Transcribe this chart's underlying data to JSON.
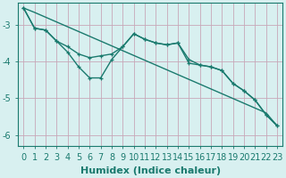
{
  "xlabel": "Humidex (Indice chaleur)",
  "background_color": "#d8f0f0",
  "grid_color": "#c8a8b8",
  "line_color": "#1a7a6e",
  "x": [
    0,
    1,
    2,
    3,
    4,
    5,
    6,
    7,
    8,
    9,
    10,
    11,
    12,
    13,
    14,
    15,
    16,
    17,
    18,
    19,
    20,
    21,
    22,
    23
  ],
  "wavy1": [
    -2.55,
    -3.1,
    -3.15,
    -3.45,
    -3.75,
    -4.15,
    -4.45,
    -4.45,
    -3.95,
    -3.6,
    -3.25,
    -3.4,
    -3.5,
    -3.55,
    -3.5,
    -4.05,
    -4.1,
    -4.15,
    -4.25,
    -4.6,
    -4.8,
    -5.05,
    -5.45,
    -5.75
  ],
  "wavy2": [
    -2.55,
    -3.1,
    -3.15,
    -3.45,
    -3.6,
    -3.8,
    -3.9,
    -3.85,
    -3.8,
    -3.6,
    -3.25,
    -3.4,
    -3.5,
    -3.55,
    -3.5,
    -3.95,
    -4.1,
    -4.15,
    -4.25,
    -4.6,
    -4.8,
    -5.05,
    -5.45,
    -5.75
  ],
  "straight_line": [
    -2.55,
    -2.67,
    -2.8,
    -2.93,
    -3.06,
    -3.19,
    -3.32,
    -3.45,
    -3.58,
    -3.71,
    -3.84,
    -3.97,
    -4.1,
    -4.23,
    -4.36,
    -4.49,
    -4.62,
    -4.75,
    -4.88,
    -5.01,
    -5.14,
    -5.27,
    -5.4,
    -5.75
  ],
  "ylim": [
    -6.3,
    -2.4
  ],
  "xlim": [
    -0.5,
    23.5
  ],
  "yticks": [
    -6,
    -5,
    -4,
    -3
  ],
  "xticks": [
    0,
    1,
    2,
    3,
    4,
    5,
    6,
    7,
    8,
    9,
    10,
    11,
    12,
    13,
    14,
    15,
    16,
    17,
    18,
    19,
    20,
    21,
    22,
    23
  ],
  "tick_fontsize": 7,
  "label_fontsize": 8
}
